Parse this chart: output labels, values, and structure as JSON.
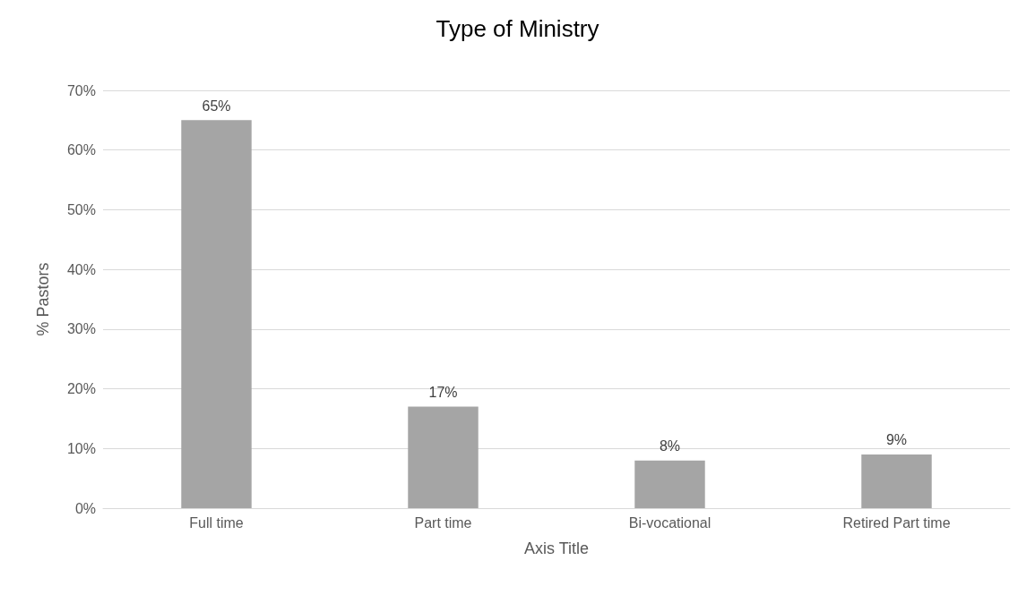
{
  "chart_data": {
    "type": "bar",
    "title": "Type of Ministry",
    "xlabel": "Axis Title",
    "ylabel": "% Pastors",
    "categories": [
      "Full time",
      "Part time",
      "Bi-vocational",
      "Retired Part time"
    ],
    "values": [
      65,
      17,
      8,
      9
    ],
    "color": "#a5a5a5",
    "value_labels": [
      "65%",
      "17%",
      "8%",
      "9%"
    ],
    "ylim": [
      0,
      70
    ],
    "yticks": [
      {
        "value": 0,
        "label": "0%"
      },
      {
        "value": 10,
        "label": "10%"
      },
      {
        "value": 20,
        "label": "20%"
      },
      {
        "value": 30,
        "label": "30%"
      },
      {
        "value": 40,
        "label": "40%"
      },
      {
        "value": 50,
        "label": "50%"
      },
      {
        "value": 60,
        "label": "60%"
      },
      {
        "value": 70,
        "label": "70%"
      }
    ],
    "grid": "y"
  }
}
